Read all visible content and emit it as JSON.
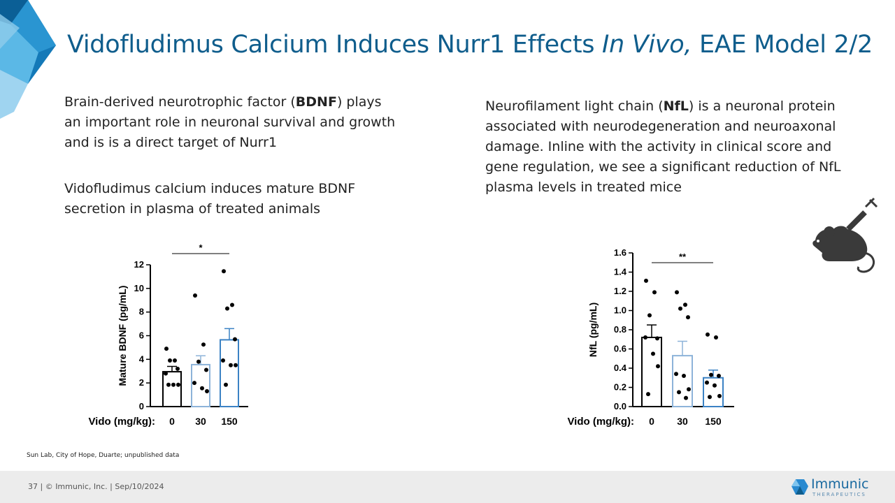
{
  "slide": {
    "title_main": "Vidofludimus Calcium Induces Nurr1 Effects ",
    "title_italic": "In Vivo,",
    "title_tail": " EAE Model 2/2"
  },
  "left_text": {
    "p1_pre": "Brain-derived neurotrophic factor (",
    "p1_bold": "BDNF",
    "p1_post": ") plays an important role in neuronal survival and growth and is is a direct target of Nurr1",
    "p2": "Vidofludimus calcium induces mature BDNF secretion in plasma of treated animals"
  },
  "right_text": {
    "p1_pre": "Neurofilament light chain (",
    "p1_bold": "NfL",
    "p1_post": ") is a neuronal protein associated with neurodegeneration and neuroaxonal damage. Inline with the activity in clinical score and gene regulation, we see a significant reduction of NfL plasma levels in treated mice"
  },
  "source_note": "Sun Lab, City of Hope, Duarte; unpublished data",
  "footer": {
    "page_info": "37  |  © Immunic, Inc.  | Sep/10/2024",
    "logo_name": "Immunic",
    "logo_sub": "THERAPEUTICS"
  },
  "colors": {
    "title": "#0f5d8c",
    "bar_control": "#000000",
    "bar_30": "#8db3d9",
    "bar_150": "#3b82c4"
  },
  "icons": {
    "mouse": "mouse-syringe-icon",
    "logo": "immunic-logo-icon"
  },
  "chart_data": [
    {
      "type": "bar",
      "ylabel": "Mature  BDNF (pg/mL)",
      "x_prefix": "Vido (mg/kg):",
      "categories": [
        "0",
        "30",
        "150"
      ],
      "values": [
        2.95,
        3.55,
        5.65
      ],
      "errors": [
        0.45,
        0.75,
        0.95
      ],
      "points": [
        [
          4.9,
          3.9,
          3.9,
          3.2,
          2.8,
          1.85,
          1.85,
          1.85
        ],
        [
          9.4,
          5.25,
          3.8,
          3.1,
          2.0,
          1.55,
          1.3
        ],
        [
          11.45,
          8.6,
          8.3,
          5.7,
          3.9,
          3.5,
          3.5,
          1.85
        ]
      ],
      "ylim": [
        0,
        12
      ],
      "yticks": [
        "0",
        "2",
        "4",
        "6",
        "8",
        "10",
        "12"
      ],
      "significance": "*"
    },
    {
      "type": "bar",
      "ylabel": "NfL (pg/mL)",
      "x_prefix": "Vido (mg/kg):",
      "categories": [
        "0",
        "30",
        "150"
      ],
      "values": [
        0.72,
        0.53,
        0.3
      ],
      "errors": [
        0.13,
        0.15,
        0.08
      ],
      "points": [
        [
          1.31,
          1.19,
          0.95,
          0.71,
          0.72,
          0.55,
          0.42,
          0.13
        ],
        [
          1.19,
          1.06,
          1.02,
          0.93,
          0.34,
          0.32,
          0.18,
          0.15,
          0.09
        ],
        [
          0.75,
          0.72,
          0.33,
          0.32,
          0.25,
          0.22,
          0.11,
          0.1
        ]
      ],
      "ylim": [
        0,
        1.6
      ],
      "yticks": [
        "0.0",
        "0.2",
        "0.4",
        "0.6",
        "0.8",
        "1.0",
        "1.2",
        "1.4",
        "1.6"
      ],
      "significance": "**"
    }
  ]
}
